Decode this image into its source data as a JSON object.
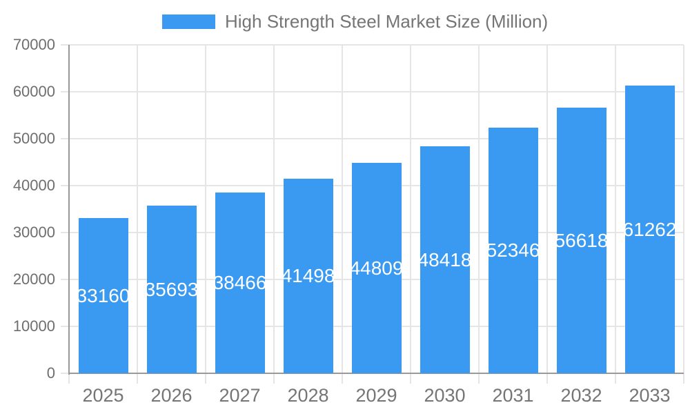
{
  "chart_data": {
    "type": "bar",
    "title": "High Strength Steel Market Size (Million)",
    "categories": [
      "2025",
      "2026",
      "2027",
      "2028",
      "2029",
      "2030",
      "2031",
      "2032",
      "2033"
    ],
    "values": [
      33160,
      35693,
      38466,
      41498,
      44809,
      48418,
      52346,
      56618,
      61262
    ],
    "xlabel": "",
    "ylabel": "",
    "ylim": [
      0,
      70000
    ],
    "ytick_interval": 10000,
    "ytick_labels": [
      "0",
      "10000",
      "20000",
      "30000",
      "40000",
      "50000",
      "60000",
      "70000"
    ],
    "grid": "on",
    "legend_position": "top",
    "value_labels": "inside-bar-centered",
    "colors": {
      "bar": "#3A99F0",
      "grid_line": "#E5E5E5",
      "axis_line": "#999999",
      "x_tick_label": "#757575",
      "y_tick_label": "#6E6E6E",
      "legend_text": "#757575",
      "value_label": "#FFFFFF",
      "background": "#FFFFFF"
    }
  }
}
